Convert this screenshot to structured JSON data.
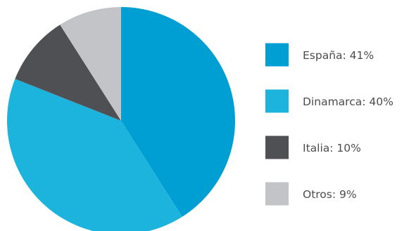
{
  "chart_data": {
    "type": "pie",
    "slices": [
      {
        "label": "España: 41%",
        "value": 41,
        "color": "#009fd3"
      },
      {
        "label": "Dinamarca: 40%",
        "value": 40,
        "color": "#1cb3dc"
      },
      {
        "label": "Italia: 10%",
        "value": 10,
        "color": "#4f5054"
      },
      {
        "label": "Otros: 9%",
        "value": 9,
        "color": "#c3c4c8"
      }
    ],
    "start_angle": "top (12 o'clock)",
    "direction": "clockwise",
    "legend_position": "right"
  }
}
